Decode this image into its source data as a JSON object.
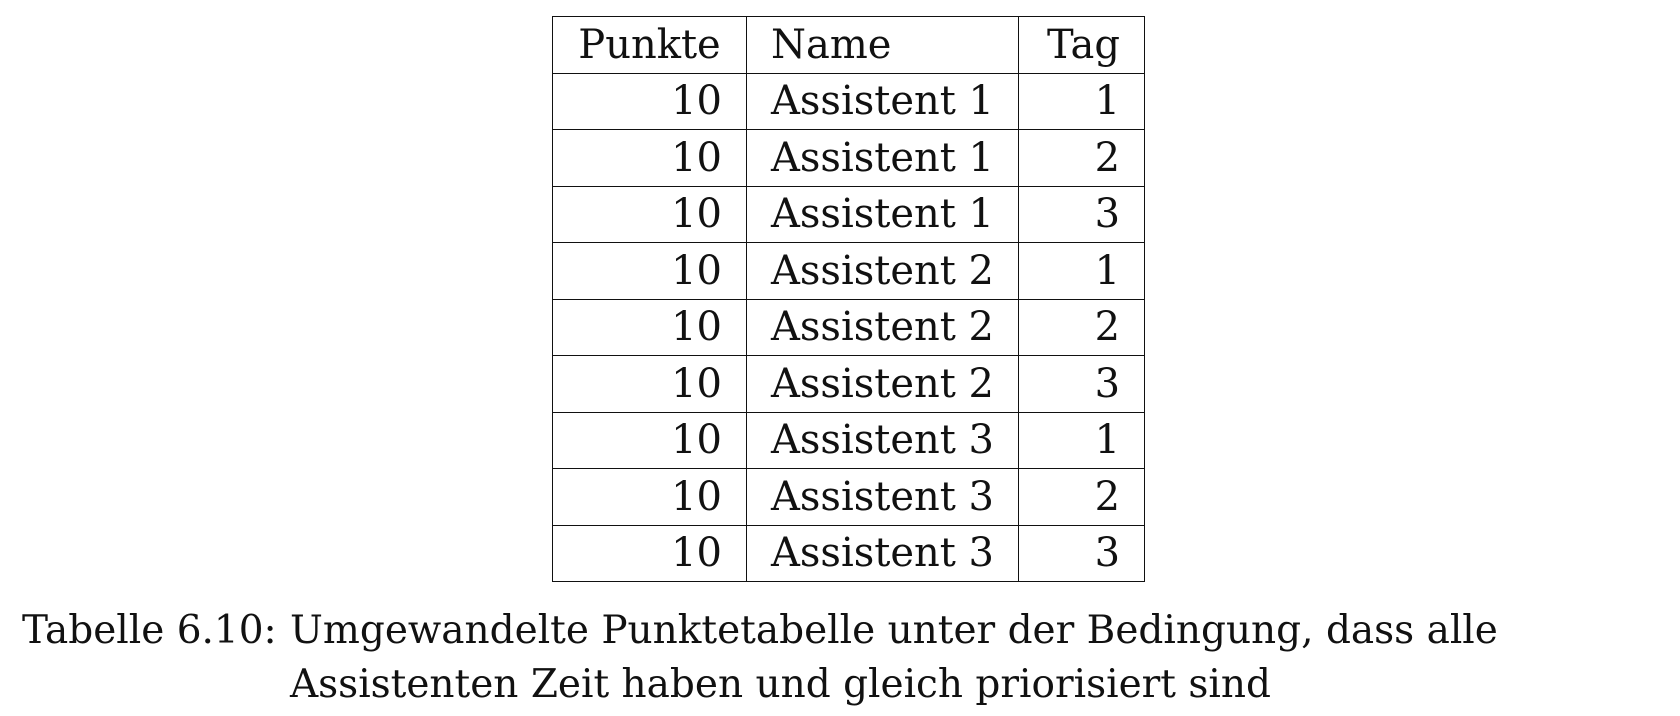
{
  "table": {
    "headers": [
      "Punkte",
      "Name",
      "Tag"
    ],
    "rows": [
      [
        "10",
        "Assistent 1",
        "1"
      ],
      [
        "10",
        "Assistent 1",
        "2"
      ],
      [
        "10",
        "Assistent 1",
        "3"
      ],
      [
        "10",
        "Assistent 2",
        "1"
      ],
      [
        "10",
        "Assistent 2",
        "2"
      ],
      [
        "10",
        "Assistent 2",
        "3"
      ],
      [
        "10",
        "Assistent 3",
        "1"
      ],
      [
        "10",
        "Assistent 3",
        "2"
      ],
      [
        "10",
        "Assistent 3",
        "3"
      ]
    ]
  },
  "caption": {
    "label": "Tabelle 6.10:",
    "text": "Umgewandelte Punktetabelle unter der Bedingung, dass alle Assistenten Zeit haben und gleich priorisiert sind"
  }
}
